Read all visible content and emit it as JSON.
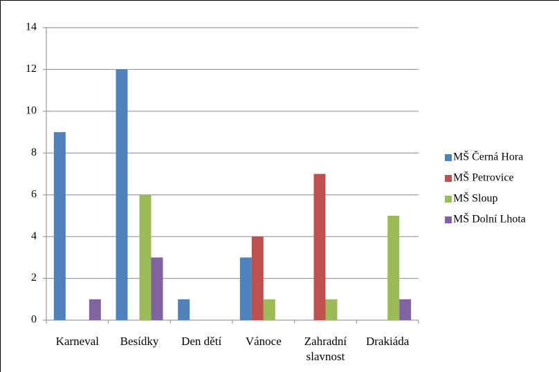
{
  "chart_data": {
    "type": "bar",
    "categories": [
      "Karneval",
      "Besídky",
      "Den dětí",
      "Vánoce",
      "Zahradní slavnost",
      "Drakiáda"
    ],
    "series": [
      {
        "name": "MŠ Černá Hora",
        "color": "#4f81bd",
        "values": [
          9,
          12,
          1,
          3,
          0,
          0
        ]
      },
      {
        "name": "MŠ Petrovice",
        "color": "#c0504d",
        "values": [
          0,
          0,
          0,
          4,
          7,
          0
        ]
      },
      {
        "name": "MŠ Sloup",
        "color": "#9bbb59",
        "values": [
          0,
          6,
          0,
          1,
          1,
          5
        ]
      },
      {
        "name": "MŠ Dolní Lhota",
        "color": "#8064a2",
        "values": [
          1,
          3,
          0,
          0,
          0,
          1
        ]
      }
    ],
    "ylim": [
      0,
      14
    ],
    "yticks": [
      0,
      2,
      4,
      6,
      8,
      10,
      12,
      14
    ],
    "grid": true,
    "legend": "right"
  }
}
